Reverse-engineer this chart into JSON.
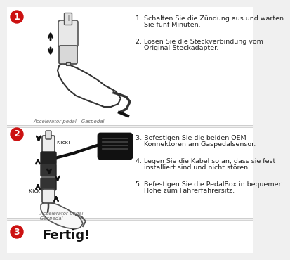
{
  "bg_color": "#f0f0f0",
  "section_bg": "#ffffff",
  "divider_color": "#c8c8c8",
  "step_color": "#cc1111",
  "caption1": "Accelerator pedal - Gaspedal",
  "caption2": "- Accelerator pedal\n- Gaspedal",
  "text1a": "1. Schalten Sie die Zündung aus und warten",
  "text1b": "    Sie fünf Minuten.",
  "text2a": "2. Lösen Sie die Steckverbindung vom",
  "text2b": "    Original-Steckadapter.",
  "text3a": "3. Befestigen Sie die beiden OEM-",
  "text3b": "    Konnektoren am Gaspedalsensor.",
  "text4a": "4. Legen Sie die Kabel so an, dass sie fest",
  "text4b": "    installiert sind und nicht stören.",
  "text5a": "5. Befestigen Sie die PedalBox in bequemer",
  "text5b": "    Höhe zum Fahrerfahrersitz.",
  "text_fertig": "Fertig!",
  "klick": "Klick!",
  "font_size_text": 6.8,
  "font_size_caption": 5.0,
  "font_size_step": 9,
  "font_size_fertig": 13
}
